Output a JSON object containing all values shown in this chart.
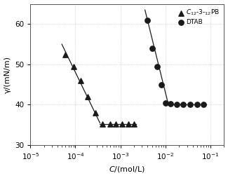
{
  "title": "",
  "xlabel": "C/(mol/L)",
  "ylabel": "γ/(mN/m)",
  "xlim": [
    1e-05,
    0.2
  ],
  "ylim": [
    30,
    65
  ],
  "yticks": [
    30,
    40,
    50,
    60
  ],
  "triangle_data": {
    "x": [
      6e-05,
      9e-05,
      0.00013,
      0.00019,
      0.00028,
      0.0004,
      0.0006,
      0.0008,
      0.0011,
      0.0015,
      0.002
    ],
    "y": [
      52.5,
      49.5,
      46.0,
      42.0,
      38.0,
      35.2,
      35.2,
      35.2,
      35.2,
      35.2,
      35.2
    ]
  },
  "circle_data": {
    "x": [
      0.004,
      0.005,
      0.0065,
      0.008,
      0.01,
      0.013,
      0.018,
      0.025,
      0.035,
      0.05,
      0.07
    ],
    "y": [
      61.0,
      54.0,
      49.5,
      45.0,
      40.5,
      40.2,
      40.0,
      40.0,
      40.0,
      40.0,
      40.0
    ]
  },
  "triangle_line_segments": [
    {
      "x": [
        5e-05,
        0.00035
      ],
      "y": [
        55.0,
        35.5
      ]
    },
    {
      "x": [
        0.00035,
        0.0022
      ],
      "y": [
        35.2,
        35.2
      ]
    }
  ],
  "circle_line_segments": [
    {
      "x": [
        0.0035,
        0.0115
      ],
      "y": [
        63.5,
        40.2
      ]
    },
    {
      "x": [
        0.0115,
        0.08
      ],
      "y": [
        40.0,
        40.0
      ]
    }
  ],
  "marker_color": "#1a1a1a",
  "line_color": "#1a1a1a",
  "grid_color": "#bbbbbb",
  "bg_color": "#ffffff",
  "legend_label_tri": "$C_{12}$-3-$_{12}$PB",
  "legend_label_circ": "DTAB"
}
